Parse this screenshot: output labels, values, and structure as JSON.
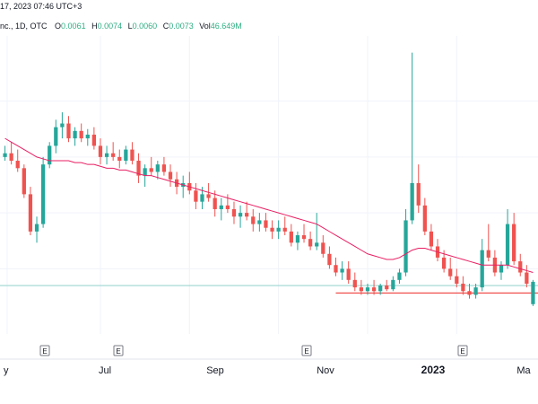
{
  "header": {
    "datetime": "17, 2023 07:46 UTC+3",
    "symbol": "nc., 1D, OTC",
    "ohlc": [
      {
        "label": "O",
        "value": "0.0061"
      },
      {
        "label": "H",
        "value": "0.0074"
      },
      {
        "label": "L",
        "value": "0.0060"
      },
      {
        "label": "C",
        "value": "0.0073"
      },
      {
        "label": "Vol",
        "value": "46.649M"
      }
    ]
  },
  "colors": {
    "up": "#26a69a",
    "down": "#ef5350",
    "ma_line": "#e91e63",
    "support_line": "#ef5350",
    "level_line": "#80cbc4",
    "grid": "#f0f3fa",
    "axis_border": "#e0e3eb"
  },
  "chart_data": {
    "type": "candlestick",
    "x_axis_labels": [
      {
        "label": "y",
        "bold": false
      },
      {
        "label": "Jul",
        "bold": false
      },
      {
        "label": "Sep",
        "bold": false
      },
      {
        "label": "Nov",
        "bold": false
      },
      {
        "label": "2023",
        "bold": true
      },
      {
        "label": "Ma",
        "bold": false
      }
    ],
    "earnings_markers": [
      "E",
      "E",
      "E",
      "E"
    ],
    "ylim": [
      0.0045,
      0.0205
    ],
    "support_level": 0.0067,
    "horizontal_level": 0.0071,
    "candles": [
      [
        0.014,
        0.0146,
        0.0138,
        0.0142
      ],
      [
        0.0142,
        0.0148,
        0.0136,
        0.0138
      ],
      [
        0.0138,
        0.0144,
        0.0132,
        0.0134
      ],
      [
        0.0134,
        0.0136,
        0.0118,
        0.012
      ],
      [
        0.012,
        0.0124,
        0.0098,
        0.01
      ],
      [
        0.01,
        0.0108,
        0.0094,
        0.0104
      ],
      [
        0.0104,
        0.014,
        0.0102,
        0.0136
      ],
      [
        0.0136,
        0.0148,
        0.0134,
        0.0146
      ],
      [
        0.0146,
        0.016,
        0.0142,
        0.0156
      ],
      [
        0.0156,
        0.0164,
        0.015,
        0.0158
      ],
      [
        0.0158,
        0.0162,
        0.0148,
        0.015
      ],
      [
        0.015,
        0.0156,
        0.0146,
        0.0154
      ],
      [
        0.0154,
        0.0158,
        0.0148,
        0.015
      ],
      [
        0.015,
        0.0155,
        0.0146,
        0.0152
      ],
      [
        0.0152,
        0.0156,
        0.0144,
        0.0146
      ],
      [
        0.0146,
        0.015,
        0.0136,
        0.014
      ],
      [
        0.014,
        0.0146,
        0.0136,
        0.0142
      ],
      [
        0.0142,
        0.0148,
        0.0138,
        0.014
      ],
      [
        0.014,
        0.0144,
        0.0134,
        0.0138
      ],
      [
        0.0138,
        0.0146,
        0.0136,
        0.0144
      ],
      [
        0.0144,
        0.0148,
        0.0136,
        0.0138
      ],
      [
        0.0138,
        0.0142,
        0.0126,
        0.013
      ],
      [
        0.013,
        0.0136,
        0.0124,
        0.0134
      ],
      [
        0.0134,
        0.014,
        0.013,
        0.0132
      ],
      [
        0.0132,
        0.0138,
        0.0128,
        0.0136
      ],
      [
        0.0136,
        0.014,
        0.013,
        0.0132
      ],
      [
        0.0132,
        0.0136,
        0.0124,
        0.0128
      ],
      [
        0.0128,
        0.0132,
        0.012,
        0.0124
      ],
      [
        0.0124,
        0.013,
        0.0118,
        0.0126
      ],
      [
        0.0126,
        0.0132,
        0.012,
        0.0122
      ],
      [
        0.0122,
        0.0126,
        0.0112,
        0.0116
      ],
      [
        0.0116,
        0.0124,
        0.0112,
        0.012
      ],
      [
        0.012,
        0.0126,
        0.0116,
        0.0118
      ],
      [
        0.0118,
        0.0122,
        0.0108,
        0.0112
      ],
      [
        0.0112,
        0.0118,
        0.0106,
        0.0114
      ],
      [
        0.0114,
        0.012,
        0.011,
        0.0112
      ],
      [
        0.0112,
        0.0116,
        0.0104,
        0.0108
      ],
      [
        0.0108,
        0.0114,
        0.0102,
        0.011
      ],
      [
        0.011,
        0.0116,
        0.0106,
        0.0108
      ],
      [
        0.0108,
        0.0112,
        0.01,
        0.0104
      ],
      [
        0.0104,
        0.011,
        0.01,
        0.0106
      ],
      [
        0.0106,
        0.011,
        0.01,
        0.0102
      ],
      [
        0.0102,
        0.0106,
        0.0096,
        0.01
      ],
      [
        0.01,
        0.0106,
        0.0096,
        0.0102
      ],
      [
        0.0102,
        0.0108,
        0.0098,
        0.01
      ],
      [
        0.01,
        0.0104,
        0.0092,
        0.0094
      ],
      [
        0.0094,
        0.01,
        0.009,
        0.0098
      ],
      [
        0.0098,
        0.0104,
        0.0094,
        0.0096
      ],
      [
        0.0096,
        0.01,
        0.009,
        0.0092
      ],
      [
        0.0092,
        0.011,
        0.009,
        0.0094
      ],
      [
        0.0094,
        0.0098,
        0.0086,
        0.0088
      ],
      [
        0.0088,
        0.0092,
        0.008,
        0.0082
      ],
      [
        0.0082,
        0.0086,
        0.0076,
        0.0078
      ],
      [
        0.0078,
        0.0084,
        0.0074,
        0.008
      ],
      [
        0.008,
        0.0084,
        0.0072,
        0.0074
      ],
      [
        0.0074,
        0.0078,
        0.0068,
        0.007
      ],
      [
        0.007,
        0.0074,
        0.0066,
        0.0068
      ],
      [
        0.0068,
        0.0072,
        0.0066,
        0.007
      ],
      [
        0.007,
        0.0074,
        0.0066,
        0.0068
      ],
      [
        0.0068,
        0.0072,
        0.0066,
        0.0071
      ],
      [
        0.0071,
        0.0074,
        0.0068,
        0.0069
      ],
      [
        0.0069,
        0.0076,
        0.0068,
        0.0074
      ],
      [
        0.0074,
        0.008,
        0.0072,
        0.0078
      ],
      [
        0.0078,
        0.0112,
        0.0076,
        0.0106
      ],
      [
        0.0106,
        0.0196,
        0.0104,
        0.0126
      ],
      [
        0.0126,
        0.0136,
        0.011,
        0.0114
      ],
      [
        0.0114,
        0.0118,
        0.0098,
        0.01
      ],
      [
        0.01,
        0.0104,
        0.009,
        0.0092
      ],
      [
        0.0092,
        0.0096,
        0.0084,
        0.0086
      ],
      [
        0.0086,
        0.009,
        0.0078,
        0.008
      ],
      [
        0.008,
        0.0086,
        0.0074,
        0.0076
      ],
      [
        0.0076,
        0.008,
        0.007,
        0.0072
      ],
      [
        0.0072,
        0.0076,
        0.0066,
        0.0068
      ],
      [
        0.0068,
        0.0072,
        0.0064,
        0.0066
      ],
      [
        0.0066,
        0.0072,
        0.0064,
        0.007
      ],
      [
        0.007,
        0.0096,
        0.0068,
        0.009
      ],
      [
        0.009,
        0.0104,
        0.0084,
        0.0086
      ],
      [
        0.0086,
        0.009,
        0.0076,
        0.0078
      ],
      [
        0.0078,
        0.0084,
        0.0074,
        0.0082
      ],
      [
        0.0082,
        0.0112,
        0.008,
        0.0104
      ],
      [
        0.0104,
        0.011,
        0.0082,
        0.0084
      ],
      [
        0.0084,
        0.0088,
        0.0076,
        0.0078
      ],
      [
        0.0078,
        0.0082,
        0.007,
        0.0072
      ],
      [
        0.0061,
        0.0074,
        0.006,
        0.0073
      ]
    ],
    "ma": [
      0.015,
      0.0148,
      0.0146,
      0.0144,
      0.0142,
      0.014,
      0.0139,
      0.0138,
      0.0138,
      0.0138,
      0.0138,
      0.0137,
      0.0137,
      0.0136,
      0.0136,
      0.0135,
      0.0134,
      0.0134,
      0.0133,
      0.0133,
      0.0132,
      0.0131,
      0.013,
      0.013,
      0.0129,
      0.0128,
      0.0127,
      0.0126,
      0.0125,
      0.0124,
      0.0123,
      0.0122,
      0.0121,
      0.012,
      0.0119,
      0.0118,
      0.0117,
      0.0116,
      0.0115,
      0.0114,
      0.0113,
      0.0112,
      0.0111,
      0.011,
      0.0109,
      0.0108,
      0.0107,
      0.0106,
      0.0105,
      0.0104,
      0.0102,
      0.01,
      0.0098,
      0.0096,
      0.0094,
      0.0092,
      0.009,
      0.0088,
      0.0087,
      0.0086,
      0.0085,
      0.0085,
      0.0086,
      0.0088,
      0.009,
      0.0091,
      0.0091,
      0.009,
      0.0089,
      0.0088,
      0.0087,
      0.0086,
      0.0085,
      0.0084,
      0.0083,
      0.0082,
      0.0082,
      0.0082,
      0.0082,
      0.0082,
      0.0081,
      0.008,
      0.0079,
      0.0078
    ]
  }
}
